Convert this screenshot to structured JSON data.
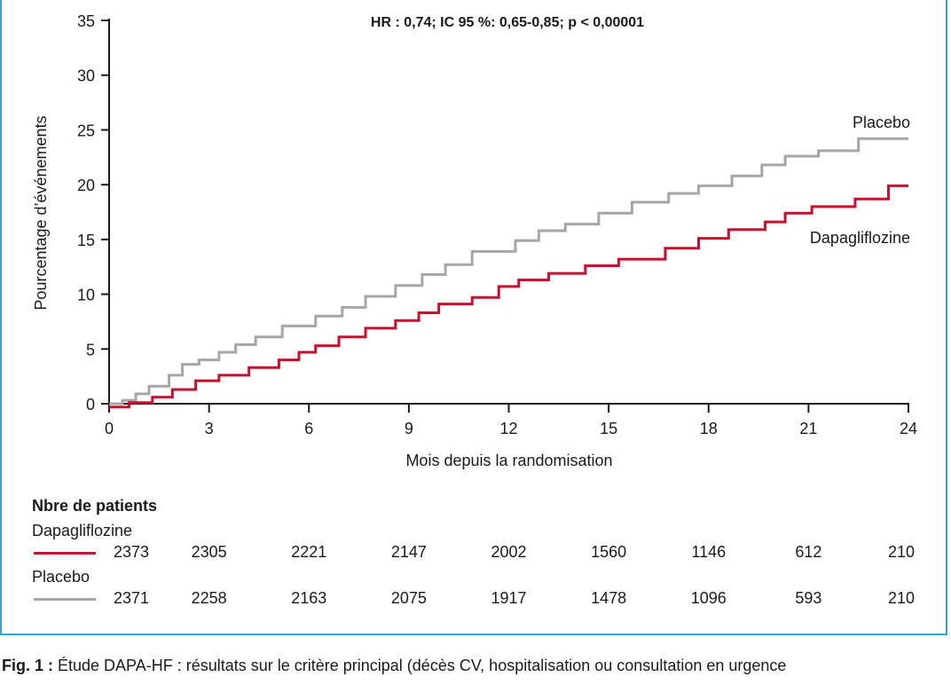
{
  "caption": {
    "label": "Fig. 1 :",
    "text": " Étude DAPA-HF : résultats sur le critère principal (décès CV, hospitalisation ou consultation en urgence"
  },
  "chart_data": {
    "type": "line",
    "subtype": "kaplan-meier step curve",
    "title": "HR : 0,74; IC 95 %: 0,65-0,85; p < 0,00001",
    "xlabel": "Mois depuis la randomisation",
    "ylabel": "Pourcentage d’événements",
    "xlim": [
      0,
      24
    ],
    "ylim": [
      0,
      35
    ],
    "xticks": [
      0,
      3,
      6,
      9,
      12,
      15,
      18,
      21,
      24
    ],
    "yticks": [
      0,
      5,
      10,
      15,
      20,
      25,
      30,
      35
    ],
    "grid": false,
    "legend": "inline labels at right end of curves",
    "series": [
      {
        "name": "Placebo",
        "color": "#a6a6a6",
        "x": [
          0.4,
          0.8,
          1.2,
          1.8,
          2.2,
          2.7,
          3.3,
          3.8,
          4.4,
          5.2,
          6.2,
          7.0,
          7.7,
          8.6,
          9.4,
          10.1,
          10.9,
          12.2,
          12.9,
          13.7,
          14.7,
          15.7,
          16.8,
          17.7,
          18.7,
          19.6,
          20.3,
          21.3,
          22.5,
          24.0
        ],
        "y": [
          0.3,
          0.9,
          1.6,
          2.6,
          3.6,
          4.0,
          4.7,
          5.4,
          6.1,
          7.1,
          8.0,
          8.8,
          9.8,
          10.8,
          11.8,
          12.7,
          13.9,
          14.9,
          15.8,
          16.4,
          17.4,
          18.4,
          19.2,
          19.9,
          20.8,
          21.8,
          22.6,
          23.1,
          24.2,
          24.2
        ]
      },
      {
        "name": "Dapagliflozine",
        "color": "#c8102e",
        "x": [
          0.0,
          0.6,
          1.3,
          1.9,
          2.6,
          3.3,
          4.2,
          5.1,
          5.7,
          6.2,
          6.9,
          7.7,
          8.6,
          9.3,
          9.9,
          10.9,
          11.7,
          12.3,
          13.2,
          14.3,
          15.3,
          16.7,
          17.7,
          18.6,
          19.7,
          20.3,
          21.1,
          22.4,
          23.4,
          24.0
        ],
        "y": [
          -0.3,
          0.1,
          0.6,
          1.3,
          2.1,
          2.6,
          3.3,
          4.0,
          4.7,
          5.3,
          6.1,
          6.9,
          7.6,
          8.3,
          9.1,
          9.7,
          10.7,
          11.3,
          11.9,
          12.6,
          13.2,
          14.2,
          15.1,
          15.9,
          16.6,
          17.4,
          18.0,
          18.7,
          19.9,
          19.9
        ]
      }
    ],
    "risk_table": {
      "heading": "Nbre de patients",
      "months": [
        0,
        3,
        6,
        9,
        12,
        15,
        18,
        21,
        24
      ],
      "groups": [
        {
          "name": "Dapagliflozine",
          "color": "#c8102e",
          "counts": [
            "2373",
            "2305",
            "2221",
            "2147",
            "2002",
            "1560",
            "1146",
            "612",
            "210"
          ]
        },
        {
          "name": "Placebo",
          "color": "#a6a6a6",
          "counts": [
            "2371",
            "2258",
            "2163",
            "2075",
            "1917",
            "1478",
            "1096",
            "593",
            "210"
          ]
        }
      ]
    }
  }
}
